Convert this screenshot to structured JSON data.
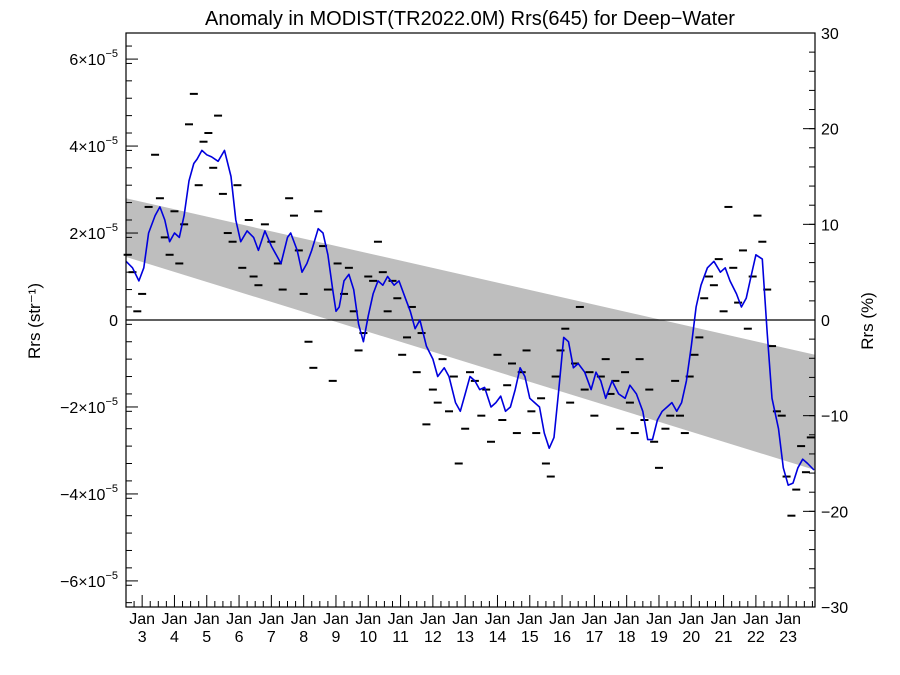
{
  "chart_data": {
    "type": "line",
    "title": "Anomaly in MODIST(TR2022.0M) Rrs(645) for Deep−Water",
    "ylabel": "Rrs (str⁻¹)",
    "ylabel_right": "Rrs (%)",
    "xlabel": "",
    "ylim": [
      -6.6e-05,
      6.6e-05
    ],
    "ylim_right": [
      -30,
      30
    ],
    "xlim": [
      2002.5,
      2023.83
    ],
    "grid": false,
    "zero_line": true,
    "y_ticks": [
      {
        "value": -6e-05,
        "mant": "−6×10",
        "exp": "−5"
      },
      {
        "value": -4e-05,
        "mant": "−4×10",
        "exp": "−5"
      },
      {
        "value": -2e-05,
        "mant": "−2×10",
        "exp": "−5"
      },
      {
        "value": 0,
        "mant": "0",
        "exp": ""
      },
      {
        "value": 2e-05,
        "mant": "2×10",
        "exp": "−5"
      },
      {
        "value": 4e-05,
        "mant": "4×10",
        "exp": "−5"
      },
      {
        "value": 6e-05,
        "mant": "6×10",
        "exp": "−5"
      }
    ],
    "y_ticks_right": [
      "−30",
      "−20",
      "−10",
      "0",
      "10",
      "20",
      "30"
    ],
    "x_ticks": [
      {
        "month": "Jan",
        "year": "3"
      },
      {
        "month": "Jan",
        "year": "4"
      },
      {
        "month": "Jan",
        "year": "5"
      },
      {
        "month": "Jan",
        "year": "6"
      },
      {
        "month": "Jan",
        "year": "7"
      },
      {
        "month": "Jan",
        "year": "8"
      },
      {
        "month": "Jan",
        "year": "9"
      },
      {
        "month": "Jan",
        "year": "10"
      },
      {
        "month": "Jan",
        "year": "11"
      },
      {
        "month": "Jan",
        "year": "12"
      },
      {
        "month": "Jan",
        "year": "13"
      },
      {
        "month": "Jan",
        "year": "14"
      },
      {
        "month": "Jan",
        "year": "15"
      },
      {
        "month": "Jan",
        "year": "16"
      },
      {
        "month": "Jan",
        "year": "17"
      },
      {
        "month": "Jan",
        "year": "18"
      },
      {
        "month": "Jan",
        "year": "19"
      },
      {
        "month": "Jan",
        "year": "20"
      },
      {
        "month": "Jan",
        "year": "21"
      },
      {
        "month": "Jan",
        "year": "22"
      },
      {
        "month": "Jan",
        "year": "23"
      }
    ],
    "trend_band": {
      "x": [
        2002.5,
        2023.83
      ],
      "upper": [
        2.8e-05,
        -8e-06
      ],
      "lower": [
        1.45e-05,
        -3.45e-05
      ],
      "color": "#bebebe"
    },
    "series": [
      {
        "color": "#0000dd",
        "x": [
          2002.5,
          2002.7,
          2002.9,
          2003.05,
          2003.2,
          2003.4,
          2003.55,
          2003.7,
          2003.85,
          2004.0,
          2004.15,
          2004.3,
          2004.45,
          2004.6,
          2004.7,
          2004.85,
          2005.0,
          2005.15,
          2005.35,
          2005.55,
          2005.75,
          2005.9,
          2006.05,
          2006.25,
          2006.45,
          2006.6,
          2006.8,
          2007.0,
          2007.15,
          2007.3,
          2007.5,
          2007.6,
          2007.8,
          2007.95,
          2008.1,
          2008.25,
          2008.45,
          2008.6,
          2008.75,
          2008.9,
          2009.0,
          2009.1,
          2009.25,
          2009.4,
          2009.55,
          2009.7,
          2009.85,
          2010.0,
          2010.15,
          2010.3,
          2010.45,
          2010.6,
          2010.8,
          2010.95,
          2011.15,
          2011.3,
          2011.45,
          2011.6,
          2011.8,
          2012.0,
          2012.15,
          2012.35,
          2012.5,
          2012.7,
          2012.85,
          2013.0,
          2013.15,
          2013.3,
          2013.45,
          2013.6,
          2013.8,
          2013.95,
          2014.1,
          2014.25,
          2014.4,
          2014.55,
          2014.7,
          2014.85,
          2015.0,
          2015.15,
          2015.3,
          2015.45,
          2015.6,
          2015.75,
          2015.9,
          2016.05,
          2016.2,
          2016.35,
          2016.5,
          2016.7,
          2016.9,
          2017.05,
          2017.2,
          2017.35,
          2017.55,
          2017.75,
          2017.95,
          2018.1,
          2018.3,
          2018.5,
          2018.65,
          2018.8,
          2018.95,
          2019.1,
          2019.25,
          2019.4,
          2019.55,
          2019.7,
          2019.85,
          2020.0,
          2020.15,
          2020.3,
          2020.5,
          2020.7,
          2020.9,
          2021.05,
          2021.2,
          2021.4,
          2021.55,
          2021.7,
          2021.85,
          2022.0,
          2022.2,
          2022.35,
          2022.5,
          2022.7,
          2022.85,
          2023.0,
          2023.15,
          2023.3,
          2023.45,
          2023.6,
          2023.8
        ],
        "values": [
          1.35e-05,
          1.2e-05,
          9e-06,
          1.2e-05,
          2e-05,
          2.4e-05,
          2.6e-05,
          2.3e-05,
          1.8e-05,
          2e-05,
          1.9e-05,
          2.4e-05,
          3.2e-05,
          3.6e-05,
          3.7e-05,
          3.9e-05,
          3.8e-05,
          3.75e-05,
          3.65e-05,
          3.9e-05,
          3.3e-05,
          2.3e-05,
          1.8e-05,
          2.05e-05,
          1.9e-05,
          1.6e-05,
          2.05e-05,
          1.7e-05,
          1.5e-05,
          1.3e-05,
          1.9e-05,
          2e-05,
          1.6e-05,
          1.1e-05,
          1.3e-05,
          1.6e-05,
          2.1e-05,
          2e-05,
          1.5e-05,
          7e-06,
          2e-06,
          3e-06,
          9e-06,
          1.05e-05,
          7e-06,
          -1e-06,
          -5e-06,
          1e-06,
          6e-06,
          9e-06,
          8e-06,
          1e-05,
          8e-06,
          9e-06,
          5e-06,
          2e-06,
          -2e-06,
          0.0,
          -6e-06,
          -9e-06,
          -1.3e-05,
          -1.1e-05,
          -1.3e-05,
          -1.9e-05,
          -2.1e-05,
          -1.7e-05,
          -1.3e-05,
          -1.4e-05,
          -1.6e-05,
          -1.55e-05,
          -2e-05,
          -1.9e-05,
          -1.75e-05,
          -2.1e-05,
          -2e-05,
          -1.6e-05,
          -1.1e-05,
          -1.3e-05,
          -1.8e-05,
          -1.9e-05,
          -2e-05,
          -2.6e-05,
          -2.95e-05,
          -2.7e-05,
          -1.6e-05,
          -4e-06,
          -5e-06,
          -1.1e-05,
          -1e-05,
          -1.2e-05,
          -1.6e-05,
          -1.2e-05,
          -1.4e-05,
          -1.8e-05,
          -1.4e-05,
          -1.7e-05,
          -1.8e-05,
          -1.5e-05,
          -1.7e-05,
          -2.1e-05,
          -2.75e-05,
          -2.75e-05,
          -2.3e-05,
          -2.1e-05,
          -2e-05,
          -1.9e-05,
          -2.1e-05,
          -1.9e-05,
          -1.4e-05,
          -6e-06,
          3e-06,
          8e-06,
          1.2e-05,
          1.35e-05,
          1.1e-05,
          1.2e-05,
          9e-06,
          6e-06,
          3e-06,
          5e-06,
          1e-05,
          1.5e-05,
          1.4e-05,
          -3e-06,
          -1.8e-05,
          -2.5e-05,
          -3.4e-05,
          -3.8e-05,
          -3.75e-05,
          -3.4e-05,
          -3.2e-05,
          -3.3e-05,
          -3.45e-05
        ]
      }
    ],
    "monthly_points": {
      "x": [
        2002.55,
        2002.7,
        2002.85,
        2003.0,
        2003.2,
        2003.4,
        2003.55,
        2003.7,
        2003.85,
        2004.0,
        2004.15,
        2004.3,
        2004.45,
        2004.6,
        2004.75,
        2004.9,
        2005.05,
        2005.2,
        2005.35,
        2005.5,
        2005.65,
        2005.8,
        2005.95,
        2006.1,
        2006.3,
        2006.45,
        2006.6,
        2006.8,
        2007.0,
        2007.2,
        2007.35,
        2007.55,
        2007.7,
        2007.85,
        2008.0,
        2008.15,
        2008.3,
        2008.45,
        2008.6,
        2008.75,
        2008.9,
        2009.05,
        2009.25,
        2009.4,
        2009.55,
        2009.7,
        2009.85,
        2010.0,
        2010.15,
        2010.3,
        2010.45,
        2010.6,
        2010.75,
        2010.9,
        2011.05,
        2011.2,
        2011.35,
        2011.5,
        2011.65,
        2011.8,
        2012.0,
        2012.15,
        2012.3,
        2012.5,
        2012.65,
        2012.8,
        2013.0,
        2013.15,
        2013.3,
        2013.5,
        2013.65,
        2013.8,
        2014.0,
        2014.15,
        2014.3,
        2014.45,
        2014.6,
        2014.75,
        2014.9,
        2015.05,
        2015.2,
        2015.35,
        2015.5,
        2015.65,
        2015.8,
        2015.95,
        2016.1,
        2016.25,
        2016.4,
        2016.55,
        2016.7,
        2016.85,
        2017.0,
        2017.2,
        2017.35,
        2017.5,
        2017.65,
        2017.8,
        2017.95,
        2018.1,
        2018.25,
        2018.4,
        2018.55,
        2018.7,
        2018.85,
        2019.0,
        2019.2,
        2019.35,
        2019.5,
        2019.65,
        2019.8,
        2019.95,
        2020.1,
        2020.25,
        2020.4,
        2020.55,
        2020.7,
        2020.85,
        2021.0,
        2021.15,
        2021.3,
        2021.45,
        2021.6,
        2021.75,
        2021.9,
        2022.05,
        2022.2,
        2022.35,
        2022.5,
        2022.65,
        2022.8,
        2022.95,
        2023.1,
        2023.25,
        2023.4,
        2023.55,
        2023.7
      ],
      "values": [
        1.5e-05,
        1.1e-05,
        2e-06,
        6e-06,
        2.6e-05,
        3.8e-05,
        2.8e-05,
        1.9e-05,
        1.5e-05,
        2.5e-05,
        1.3e-05,
        2.2e-05,
        4.5e-05,
        5.2e-05,
        3.1e-05,
        4.1e-05,
        4.3e-05,
        3.5e-05,
        4.7e-05,
        2.9e-05,
        2e-05,
        1.8e-05,
        3.1e-05,
        1.2e-05,
        2.3e-05,
        1e-05,
        8e-06,
        2.2e-05,
        1.8e-05,
        1.3e-05,
        7e-06,
        2.8e-05,
        2.4e-05,
        1.6e-05,
        6e-06,
        -5e-06,
        -1.1e-05,
        2.5e-05,
        1.7e-05,
        7e-06,
        -1.4e-05,
        1.3e-05,
        6e-06,
        1.2e-05,
        2e-06,
        -7e-06,
        -3e-06,
        1e-05,
        9e-06,
        1.8e-05,
        1.1e-05,
        2e-06,
        9e-06,
        5e-06,
        -8e-06,
        -4e-06,
        3e-06,
        -1.2e-05,
        -3e-06,
        -2.4e-05,
        -1.6e-05,
        -1.9e-05,
        -9e-06,
        -2.1e-05,
        -1.3e-05,
        -3.3e-05,
        -2.5e-05,
        -1.2e-05,
        -1.4e-05,
        -2.2e-05,
        -1.6e-05,
        -2.8e-05,
        -8e-06,
        -2.3e-05,
        -1.5e-05,
        -1e-05,
        -2.6e-05,
        -1.2e-05,
        -7e-06,
        -2.1e-05,
        -2.6e-05,
        -1.8e-05,
        -3.3e-05,
        -3.6e-05,
        -1.3e-05,
        -7e-06,
        -2e-06,
        -1.9e-05,
        -1e-05,
        3e-06,
        -1.6e-05,
        -1.2e-05,
        -2.2e-05,
        -1.3e-05,
        -9e-06,
        -1.7e-05,
        -1.4e-05,
        -2.5e-05,
        -1.2e-05,
        -1.9e-05,
        -2.6e-05,
        -9e-06,
        -2.3e-05,
        -1.6e-05,
        -2.8e-05,
        -3.4e-05,
        -2.5e-05,
        -2.2e-05,
        -1.4e-05,
        -2.2e-05,
        -2.6e-05,
        -1.3e-05,
        -8e-06,
        -4e-06,
        5e-06,
        1e-05,
        8e-06,
        1.4e-05,
        2e-06,
        2.6e-05,
        1.2e-05,
        4e-06,
        1.6e-05,
        -2e-06,
        1e-05,
        2.4e-05,
        1.8e-05,
        7e-06,
        -6e-06,
        -2.1e-05,
        -2.2e-05,
        -3.6e-05,
        -4.5e-05,
        -3.9e-05,
        -2.9e-05,
        -3.5e-05,
        -2.7e-05
      ]
    }
  }
}
